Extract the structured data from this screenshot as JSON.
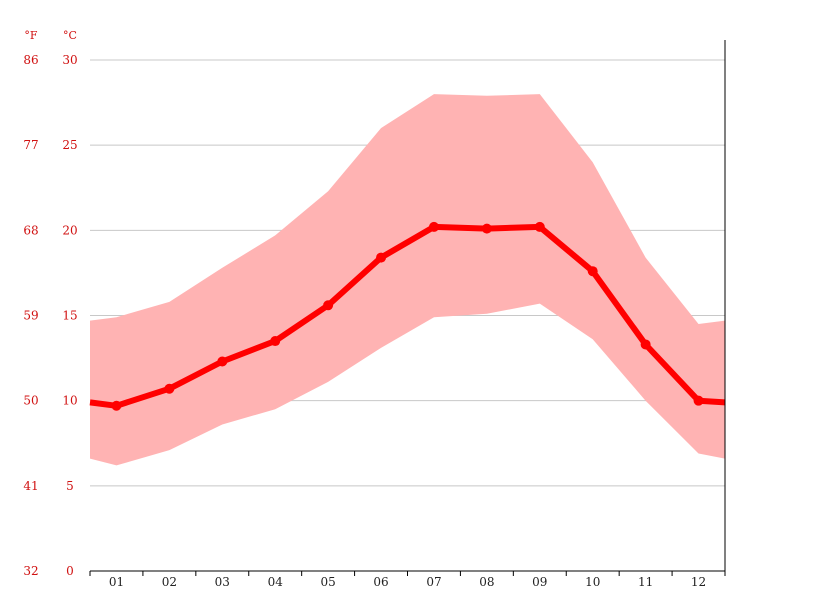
{
  "chart_data": {
    "type": "line",
    "unit_labels": {
      "fahrenheit": "°F",
      "celsius": "°C"
    },
    "y_ticks_celsius": [
      "30",
      "25",
      "20",
      "15",
      "10",
      "5",
      "0"
    ],
    "y_ticks_fahrenheit": [
      "86",
      "77",
      "68",
      "59",
      "50",
      "41",
      "32"
    ],
    "categories": [
      "01",
      "02",
      "03",
      "04",
      "05",
      "06",
      "07",
      "08",
      "09",
      "10",
      "11",
      "12"
    ],
    "ylim": [
      0,
      30
    ],
    "grid": true,
    "series": [
      {
        "values": [
          9.7,
          10.7,
          12.3,
          13.5,
          15.6,
          18.4,
          20.2,
          20.1,
          20.2,
          17.6,
          13.3,
          10.0
        ],
        "color": "#ff0000"
      }
    ],
    "range_band": {
      "color": "#ffb3b3",
      "max": [
        14.9,
        15.8,
        17.8,
        19.7,
        22.3,
        26.0,
        28.0,
        27.9,
        28.0,
        24.0,
        18.4,
        14.5
      ],
      "min": [
        6.2,
        7.1,
        8.6,
        9.5,
        11.1,
        13.1,
        14.9,
        15.1,
        15.7,
        13.6,
        10.0,
        6.9
      ],
      "edge_left": {
        "max": 14.7,
        "min": 6.6,
        "mean": 9.9
      },
      "edge_right": {
        "max": 14.7,
        "min": 6.6,
        "mean": 9.9
      }
    }
  }
}
